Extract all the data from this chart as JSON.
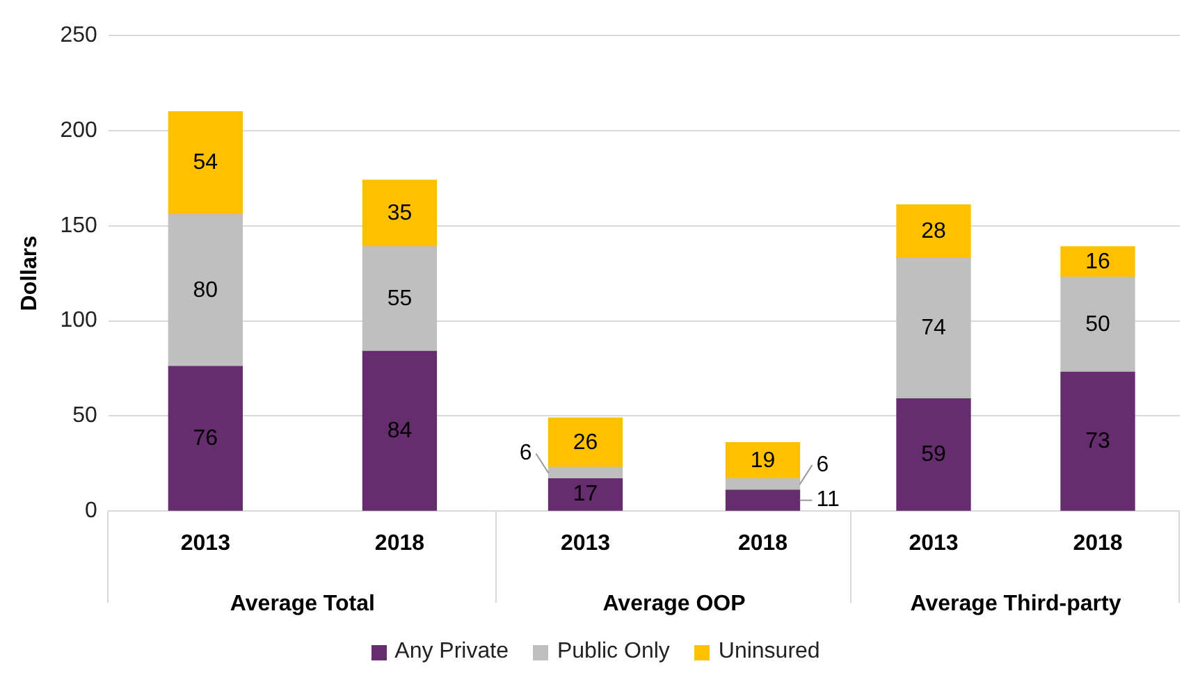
{
  "chart_data": [
    {
      "type": "bar",
      "stacked": true,
      "ylabel": "Dollars",
      "xlabel": "Average Total",
      "categories": [
        "2013",
        "2018"
      ],
      "series": [
        {
          "color": "#652c6e",
          "values": [
            76,
            84
          ]
        },
        {
          "color": "#bfbfbf",
          "values": [
            80,
            55
          ]
        },
        {
          "color": "#ffc000",
          "values": [
            54,
            35
          ]
        }
      ],
      "ylim": [
        0,
        250
      ],
      "yticks": [
        0,
        50,
        100,
        150,
        200,
        250
      ],
      "grid": "y",
      "data_labels": true
    },
    {
      "type": "bar",
      "stacked": true,
      "xlabel": "Average OOP",
      "categories": [
        "2013",
        "2018"
      ],
      "series": [
        {
          "name": "Any Private",
          "color": "#652c6e",
          "values": [
            17,
            11
          ]
        },
        {
          "name": "Public Only",
          "color": "#bfbfbf",
          "values": [
            6,
            6
          ]
        },
        {
          "name": "Uninsured",
          "color": "#ffc000",
          "values": [
            26,
            19
          ]
        }
      ],
      "ylim": [
        0,
        250
      ],
      "yticks": [
        0,
        50,
        100,
        150,
        200,
        250
      ],
      "tick_labels": "x",
      "grid": "y",
      "legend": "bottom",
      "data_labels": true
    },
    {
      "type": "bar",
      "stacked": true,
      "xlabel": "Average Third-party",
      "categories": [
        "2013",
        "2018"
      ],
      "series": [
        {
          "color": "#652c6e",
          "values": [
            59,
            73
          ]
        },
        {
          "color": "#bfbfbf",
          "values": [
            74,
            50
          ]
        },
        {
          "color": "#ffc000",
          "values": [
            28,
            16
          ]
        }
      ],
      "ylim": [
        0,
        250
      ],
      "yticks": [
        0,
        50,
        100,
        150,
        200,
        250
      ],
      "tick_labels": "x",
      "grid": "y",
      "data_labels": true
    }
  ]
}
